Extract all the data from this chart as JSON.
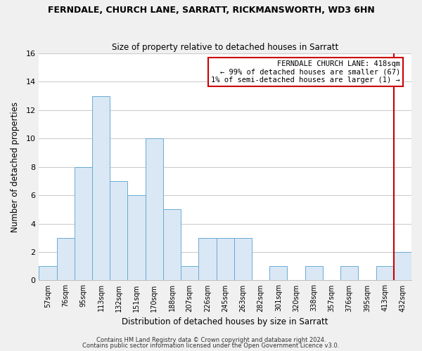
{
  "title": "FERNDALE, CHURCH LANE, SARRATT, RICKMANSWORTH, WD3 6HN",
  "subtitle": "Size of property relative to detached houses in Sarratt",
  "xlabel": "Distribution of detached houses by size in Sarratt",
  "ylabel": "Number of detached properties",
  "bar_labels": [
    "57sqm",
    "76sqm",
    "95sqm",
    "113sqm",
    "132sqm",
    "151sqm",
    "170sqm",
    "188sqm",
    "207sqm",
    "226sqm",
    "245sqm",
    "263sqm",
    "282sqm",
    "301sqm",
    "320sqm",
    "338sqm",
    "357sqm",
    "376sqm",
    "395sqm",
    "413sqm",
    "432sqm"
  ],
  "bar_values": [
    1,
    3,
    8,
    13,
    7,
    6,
    10,
    5,
    1,
    3,
    3,
    3,
    0,
    1,
    0,
    1,
    0,
    1,
    0,
    1,
    2
  ],
  "bar_color": "#dae8f5",
  "bar_edgecolor": "#6aaad4",
  "highlight_line_color": "#cc0000",
  "annotation_box_text": "FERNDALE CHURCH LANE: 418sqm\n← 99% of detached houses are smaller (67)\n1% of semi-detached houses are larger (1) →",
  "annotation_box_facecolor": "white",
  "annotation_box_edgecolor": "#cc0000",
  "ylim": [
    0,
    16
  ],
  "yticks": [
    0,
    2,
    4,
    6,
    8,
    10,
    12,
    14,
    16
  ],
  "footer_line1": "Contains HM Land Registry data © Crown copyright and database right 2024.",
  "footer_line2": "Contains public sector information licensed under the Open Government Licence v3.0.",
  "fig_facecolor": "#f0f0f0",
  "ax_facecolor": "#ffffff",
  "grid_color": "#cccccc"
}
